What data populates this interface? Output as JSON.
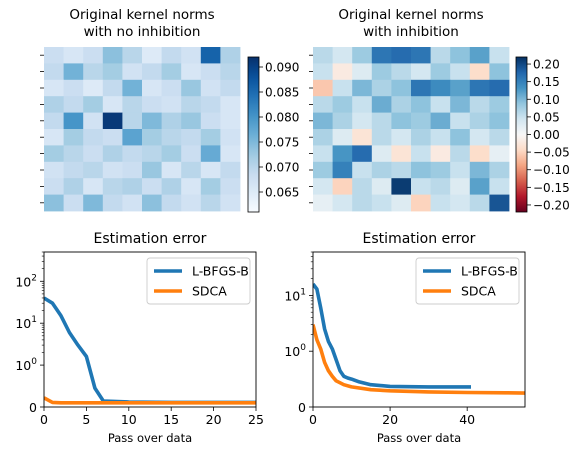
{
  "chart_data": [
    {
      "type": "heatmap",
      "title": "Original kernel norms\nwith no inhibition",
      "colormap": "Blues",
      "vmin": 0.061,
      "vmax": 0.092,
      "colorbar_ticks": [
        "0.090",
        "0.085",
        "0.080",
        "0.075",
        "0.070",
        "0.065"
      ],
      "colorbar_tick_values": [
        0.09,
        0.085,
        0.08,
        0.075,
        0.07,
        0.065
      ],
      "rows": 10,
      "cols": 10,
      "values": [
        [
          0.068,
          0.066,
          0.068,
          0.074,
          0.07,
          0.065,
          0.069,
          0.067,
          0.086,
          0.071
        ],
        [
          0.069,
          0.076,
          0.07,
          0.072,
          0.067,
          0.069,
          0.072,
          0.066,
          0.068,
          0.07
        ],
        [
          0.066,
          0.068,
          0.065,
          0.069,
          0.076,
          0.066,
          0.068,
          0.073,
          0.067,
          0.069
        ],
        [
          0.071,
          0.069,
          0.072,
          0.066,
          0.07,
          0.068,
          0.067,
          0.07,
          0.069,
          0.066
        ],
        [
          0.069,
          0.08,
          0.067,
          0.091,
          0.07,
          0.075,
          0.071,
          0.073,
          0.068,
          0.066
        ],
        [
          0.066,
          0.072,
          0.069,
          0.068,
          0.078,
          0.072,
          0.07,
          0.069,
          0.072,
          0.067
        ],
        [
          0.072,
          0.07,
          0.068,
          0.071,
          0.069,
          0.07,
          0.072,
          0.068,
          0.077,
          0.066
        ],
        [
          0.067,
          0.069,
          0.07,
          0.067,
          0.068,
          0.073,
          0.066,
          0.07,
          0.066,
          0.069
        ],
        [
          0.068,
          0.071,
          0.066,
          0.07,
          0.071,
          0.068,
          0.071,
          0.066,
          0.072,
          0.068
        ],
        [
          0.074,
          0.068,
          0.075,
          0.069,
          0.067,
          0.074,
          0.069,
          0.067,
          0.07,
          0.067
        ]
      ]
    },
    {
      "type": "heatmap",
      "title": "Original kernel norms\nwith inhibition",
      "colormap": "RdBu",
      "vmin": -0.22,
      "vmax": 0.22,
      "colorbar_ticks": [
        "0.20",
        "0.15",
        "0.10",
        "0.05",
        "0.00",
        "−0.05",
        "−0.10",
        "−0.15",
        "−0.20"
      ],
      "colorbar_tick_values": [
        0.2,
        0.15,
        0.1,
        0.05,
        0.0,
        -0.05,
        -0.1,
        -0.15,
        -0.2
      ],
      "rows": 10,
      "cols": 10,
      "values": [
        [
          0.06,
          0.04,
          0.08,
          0.16,
          0.17,
          0.16,
          0.06,
          0.09,
          0.12,
          0.05
        ],
        [
          0.05,
          -0.02,
          0.03,
          0.08,
          0.06,
          0.04,
          0.08,
          0.05,
          -0.04,
          0.09
        ],
        [
          -0.06,
          0.05,
          0.1,
          0.07,
          0.09,
          0.16,
          0.14,
          0.12,
          0.16,
          0.17
        ],
        [
          0.06,
          0.08,
          0.05,
          0.11,
          0.07,
          0.09,
          0.05,
          0.1,
          0.06,
          0.08
        ],
        [
          0.1,
          0.07,
          0.04,
          0.06,
          0.09,
          0.08,
          0.11,
          0.05,
          0.07,
          0.09
        ],
        [
          0.07,
          0.03,
          -0.03,
          0.06,
          0.04,
          0.07,
          0.05,
          0.09,
          0.04,
          0.06
        ],
        [
          0.05,
          0.13,
          0.17,
          0.03,
          -0.03,
          0.05,
          -0.02,
          0.06,
          -0.04,
          0.02
        ],
        [
          0.08,
          0.15,
          0.05,
          0.07,
          0.06,
          0.09,
          0.08,
          0.05,
          0.1,
          0.07
        ],
        [
          0.04,
          -0.05,
          0.06,
          0.03,
          0.21,
          0.05,
          0.06,
          0.03,
          0.12,
          0.05
        ],
        [
          0.02,
          0.04,
          0.06,
          0.05,
          0.03,
          -0.05,
          0.05,
          0.04,
          0.06,
          0.19
        ]
      ]
    },
    {
      "type": "line",
      "title": "Estimation error",
      "xlabel": "Pass over data",
      "ylabel": "",
      "yscale": "symlog",
      "linthresh": 1,
      "xlim": [
        0,
        25
      ],
      "ylim": [
        0,
        500
      ],
      "xticks": [
        0,
        5,
        10,
        15,
        20,
        25
      ],
      "yticks": [
        {
          "value": 0,
          "label": "0"
        },
        {
          "value": 1,
          "label": "10^0"
        },
        {
          "value": 10,
          "label": "10^1"
        },
        {
          "value": 100,
          "label": "10^2"
        }
      ],
      "legend_position": "top-right",
      "series": [
        {
          "name": "L-BFGS-B",
          "color": "#1f77b4",
          "x": [
            0,
            1,
            2,
            3,
            4,
            5,
            6,
            7,
            10,
            15,
            20,
            25
          ],
          "y": [
            40,
            30,
            15,
            6,
            3,
            1.6,
            0.45,
            0.14,
            0.12,
            0.11,
            0.11,
            0.11
          ]
        },
        {
          "name": "SDCA",
          "color": "#ff7f0e",
          "x": [
            0,
            1,
            2,
            5,
            10,
            15,
            20,
            25
          ],
          "y": [
            0.22,
            0.11,
            0.1,
            0.1,
            0.1,
            0.1,
            0.1,
            0.1
          ]
        }
      ]
    },
    {
      "type": "line",
      "title": "Estimation error",
      "xlabel": "Pass over data",
      "ylabel": "",
      "yscale": "symlog",
      "linthresh": 1,
      "xlim": [
        0,
        55
      ],
      "ylim": [
        0,
        60
      ],
      "xticks": [
        0,
        20,
        40
      ],
      "yticks": [
        {
          "value": 0,
          "label": "0"
        },
        {
          "value": 1,
          "label": "10^0"
        },
        {
          "value": 10,
          "label": "10^1"
        }
      ],
      "legend_position": "top-right",
      "series": [
        {
          "name": "L-BFGS-B",
          "color": "#1f77b4",
          "x": [
            0,
            1,
            2,
            3,
            4,
            5,
            6,
            7,
            8,
            9,
            10,
            12,
            15,
            20,
            30,
            41
          ],
          "y": [
            16,
            13,
            6,
            2.5,
            1.5,
            1.1,
            0.85,
            0.65,
            0.55,
            0.52,
            0.5,
            0.45,
            0.4,
            0.37,
            0.36,
            0.36
          ]
        },
        {
          "name": "SDCA",
          "color": "#ff7f0e",
          "x": [
            0,
            1,
            2,
            3,
            4,
            5,
            6,
            8,
            10,
            15,
            20,
            30,
            40,
            50,
            55
          ],
          "y": [
            3,
            1.6,
            1.1,
            0.8,
            0.65,
            0.55,
            0.47,
            0.4,
            0.36,
            0.31,
            0.29,
            0.27,
            0.26,
            0.255,
            0.25
          ]
        }
      ]
    }
  ]
}
